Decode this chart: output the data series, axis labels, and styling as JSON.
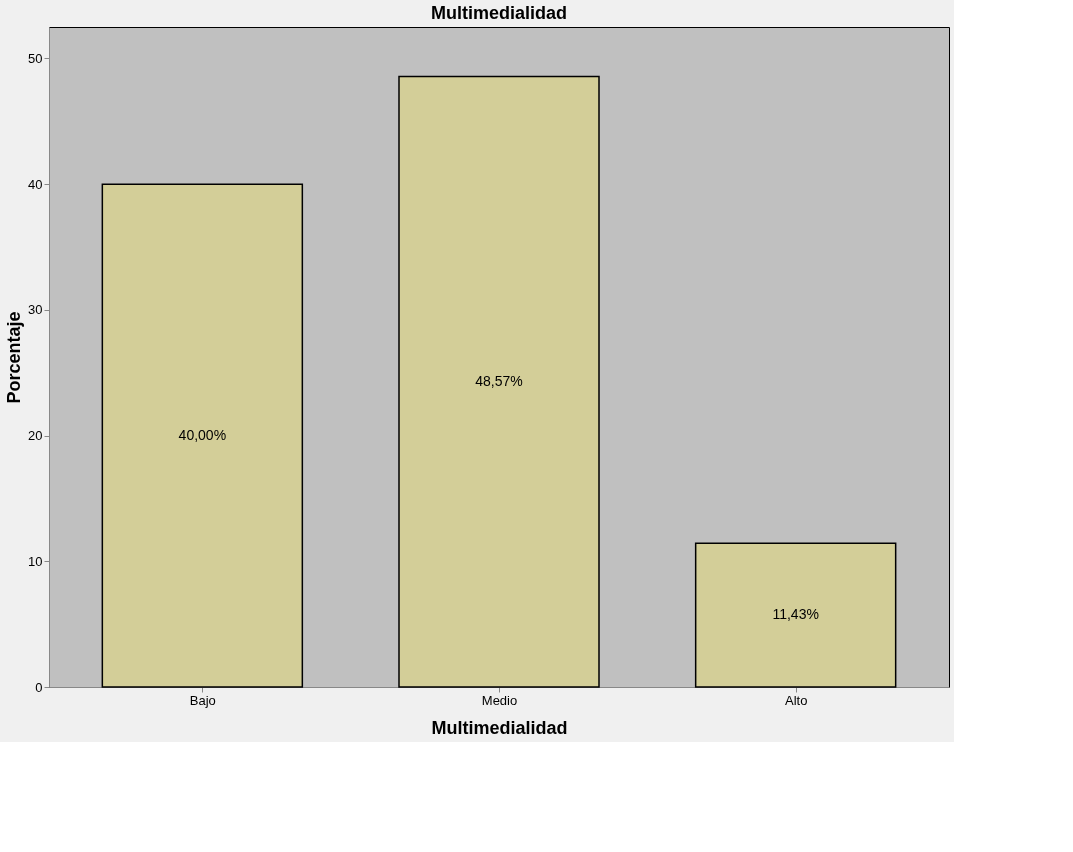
{
  "chart_data": {
    "type": "bar",
    "title": "Multimedialidad",
    "xlabel": "Multimedialidad",
    "ylabel": "Porcentaje",
    "categories": [
      "Bajo",
      "Medio",
      "Alto"
    ],
    "values": [
      40.0,
      48.57,
      11.43
    ],
    "value_labels": [
      "40,00%",
      "48,57%",
      "11,43%"
    ],
    "color": "#d3ce98",
    "ylim": [
      0,
      52.5
    ],
    "yticks": [
      0,
      10,
      20,
      30,
      40,
      50
    ],
    "grid": false
  }
}
